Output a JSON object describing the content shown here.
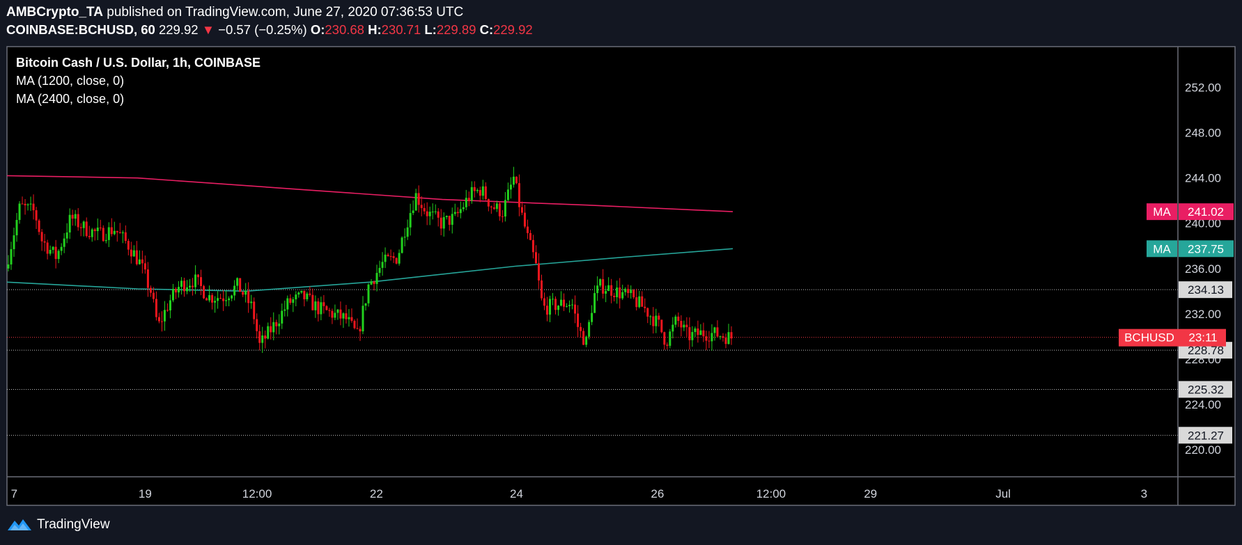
{
  "header": {
    "author": "AMBCrypto_TA",
    "published_text": "published on TradingView.com, June 27, 2020 07:36:53 UTC",
    "symbol": "COINBASE:BCHUSD, 60",
    "last": "229.92",
    "change_arrow": "▼",
    "change": "−0.57 (−0.25%)",
    "o_label": "O:",
    "o_value": "230.68",
    "h_label": "H:",
    "h_value": "230.71",
    "l_label": "L:",
    "l_value": "229.89",
    "c_label": "C:",
    "c_value": "229.92"
  },
  "legend": {
    "title": "Bitcoin Cash / U.S. Dollar, 1h, COINBASE",
    "ma1": "MA (1200, close, 0)",
    "ma2": "MA (2400, close, 0)"
  },
  "brand": {
    "name": "TradingView",
    "icon": "tradingview-logo-icon"
  },
  "colors": {
    "background": "#000000",
    "page_background": "#131722",
    "up": "#22d11e",
    "down": "#f0161d",
    "ma_long": "#e91e63",
    "ma_short": "#26a69a",
    "price_line": "#f23645",
    "axis_text": "#d1d4dc"
  },
  "chart_data": {
    "type": "candlestick",
    "title": "Bitcoin Cash / U.S. Dollar, 1h, COINBASE",
    "x_ticks": [
      "7",
      "19",
      "12:00",
      "22",
      "24",
      "26",
      "12:00",
      "29",
      "Jul",
      "3"
    ],
    "y_ticks": [
      252.0,
      248.0,
      244.0,
      240.0,
      236.0,
      232.0,
      228.0,
      224.0,
      220.0
    ],
    "ylim": [
      217.6,
      255.6
    ],
    "horizontal_levels": [
      234.13,
      228.78,
      225.32,
      221.27
    ],
    "last_price": {
      "label": "BCHUSD",
      "value": 229.92,
      "countdown": "23:11"
    },
    "series": [
      {
        "name": "MA (2400, close, 0)",
        "tag": "MA",
        "value_tag": "241.02",
        "points": [
          [
            0,
            244.2
          ],
          [
            0.18,
            244.0
          ],
          [
            0.4,
            243.0
          ],
          [
            0.6,
            242.1
          ],
          [
            0.8,
            241.6
          ],
          [
            1.0,
            241.02
          ]
        ]
      },
      {
        "name": "MA (1200, close, 0)",
        "tag": "MA",
        "value_tag": "237.75",
        "points": [
          [
            0,
            234.8
          ],
          [
            0.18,
            234.2
          ],
          [
            0.33,
            234.0
          ],
          [
            0.5,
            234.8
          ],
          [
            0.7,
            236.2
          ],
          [
            0.85,
            237.0
          ],
          [
            1.0,
            237.75
          ]
        ]
      }
    ],
    "price_path": [
      [
        0,
        236.0
      ],
      [
        0.02,
        241.5
      ],
      [
        0.04,
        241.0
      ],
      [
        0.05,
        238.5
      ],
      [
        0.07,
        237.0
      ],
      [
        0.09,
        240.5
      ],
      [
        0.11,
        239.5
      ],
      [
        0.13,
        239.0
      ],
      [
        0.15,
        239.5
      ],
      [
        0.17,
        238.0
      ],
      [
        0.185,
        236.5
      ],
      [
        0.2,
        234.0
      ],
      [
        0.21,
        230.8
      ],
      [
        0.225,
        233.0
      ],
      [
        0.24,
        234.5
      ],
      [
        0.26,
        235.0
      ],
      [
        0.28,
        233.5
      ],
      [
        0.3,
        233.5
      ],
      [
        0.32,
        234.5
      ],
      [
        0.34,
        232.5
      ],
      [
        0.35,
        229.2
      ],
      [
        0.37,
        231.0
      ],
      [
        0.39,
        233.0
      ],
      [
        0.41,
        233.5
      ],
      [
        0.43,
        232.5
      ],
      [
        0.45,
        232.0
      ],
      [
        0.47,
        231.5
      ],
      [
        0.485,
        230.0
      ],
      [
        0.5,
        234.5
      ],
      [
        0.52,
        236.5
      ],
      [
        0.54,
        237.0
      ],
      [
        0.55,
        239.5
      ],
      [
        0.565,
        242.5
      ],
      [
        0.58,
        241.0
      ],
      [
        0.6,
        240.0
      ],
      [
        0.62,
        240.5
      ],
      [
        0.64,
        242.5
      ],
      [
        0.655,
        243.0
      ],
      [
        0.67,
        241.5
      ],
      [
        0.685,
        241.0
      ],
      [
        0.7,
        244.0
      ],
      [
        0.71,
        241.0
      ],
      [
        0.72,
        238.5
      ],
      [
        0.73,
        236.5
      ],
      [
        0.74,
        232.5
      ],
      [
        0.76,
        232.8
      ],
      [
        0.78,
        233.0
      ],
      [
        0.79,
        230.5
      ],
      [
        0.8,
        229.5
      ],
      [
        0.81,
        233.5
      ],
      [
        0.82,
        234.5
      ],
      [
        0.84,
        234.0
      ],
      [
        0.86,
        233.5
      ],
      [
        0.88,
        232.5
      ],
      [
        0.9,
        231.0
      ],
      [
        0.91,
        229.5
      ],
      [
        0.925,
        231.5
      ],
      [
        0.94,
        230.0
      ],
      [
        0.96,
        230.3
      ],
      [
        0.98,
        230.2
      ],
      [
        1.0,
        229.9
      ]
    ]
  }
}
